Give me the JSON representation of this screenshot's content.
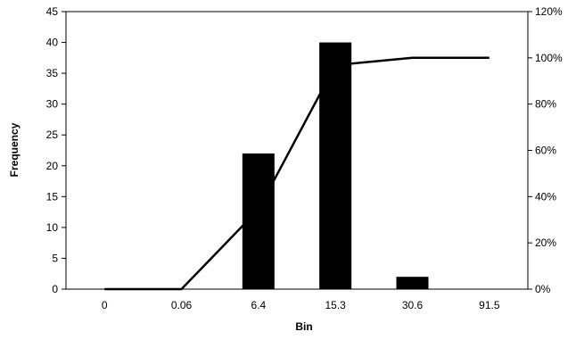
{
  "chart_data": {
    "type": "bar",
    "xlabel": "Bin",
    "ylabel": "Frequency",
    "categories": [
      "0",
      "0.06",
      "6.4",
      "15.3",
      "30.6",
      "91.5"
    ],
    "series": [
      {
        "type": "bar",
        "values": [
          0,
          0,
          22,
          40,
          2,
          0
        ]
      },
      {
        "type": "line",
        "axis": "right",
        "values": [
          0,
          0,
          34.4,
          96.9,
          100,
          100
        ]
      }
    ],
    "ylim": [
      0,
      45
    ],
    "y_ticks": [
      "0",
      "5",
      "10",
      "15",
      "20",
      "25",
      "30",
      "35",
      "40",
      "45"
    ],
    "y2lim": [
      0,
      120
    ],
    "y2_ticks": [
      "0%",
      "20%",
      "40%",
      "60%",
      "80%",
      "100%",
      "120%"
    ],
    "grid": false,
    "legend": "none",
    "colors": {
      "bar": "#000000",
      "line": "#000000",
      "frame": "#000000"
    }
  }
}
